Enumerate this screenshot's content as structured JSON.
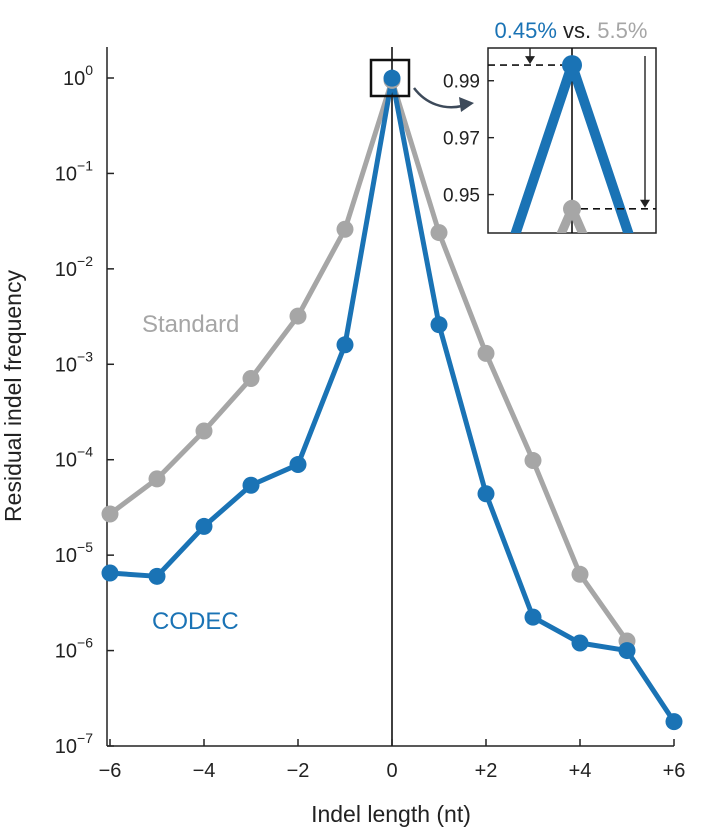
{
  "chart_data": {
    "type": "line",
    "xlabel": "Indel length (nt)",
    "ylabel": "Residual indel frequency",
    "xlim": [
      -6,
      6
    ],
    "ylim_log10": [
      -7,
      0
    ],
    "y_scale": "log",
    "x_tick_labels": [
      {
        "value": -6,
        "label": "−6"
      },
      {
        "value": -4,
        "label": "−4"
      },
      {
        "value": -2,
        "label": "−2"
      },
      {
        "value": 0,
        "label": "0"
      },
      {
        "value": 2,
        "label": "+2"
      },
      {
        "value": 4,
        "label": "+4"
      },
      {
        "value": 6,
        "label": "+6"
      }
    ],
    "y_tick_labels": [
      {
        "exp": 0,
        "base": "10",
        "sup": "0"
      },
      {
        "exp": -1,
        "base": "10",
        "sup": "−1"
      },
      {
        "exp": -2,
        "base": "10",
        "sup": "−2"
      },
      {
        "exp": -3,
        "base": "10",
        "sup": "−3"
      },
      {
        "exp": -4,
        "base": "10",
        "sup": "−4"
      },
      {
        "exp": -5,
        "base": "10",
        "sup": "−5"
      },
      {
        "exp": -6,
        "base": "10",
        "sup": "−6"
      },
      {
        "exp": -7,
        "base": "10",
        "sup": "−7"
      }
    ],
    "series": [
      {
        "name": "Standard",
        "color": "#a6a6a6",
        "x": [
          -6,
          -5,
          -4,
          -3,
          -2,
          -1,
          0,
          1,
          2,
          3,
          4,
          5
        ],
        "y": [
          2.7e-05,
          6.3e-05,
          0.0002,
          0.00071,
          0.0032,
          0.026,
          0.945,
          0.024,
          0.0013,
          9.8e-05,
          6.3e-06,
          1.26e-06
        ]
      },
      {
        "name": "CODEC",
        "color": "#1a73b5",
        "x": [
          -6,
          -5,
          -4,
          -3,
          -2,
          -1,
          0,
          1,
          2,
          3,
          4,
          5,
          6
        ],
        "y": [
          6.5e-06,
          6e-06,
          2e-05,
          5.4e-05,
          8.9e-05,
          0.0016,
          0.9955,
          0.0026,
          4.4e-05,
          2.24e-06,
          1.2e-06,
          1e-06,
          1.8e-07
        ]
      }
    ],
    "inset": {
      "title_codec": "0.45%",
      "title_vs": "vs.",
      "title_standard": "5.5%",
      "y_tick_labels": [
        "0.99",
        "0.97",
        "0.95"
      ],
      "y_ticks": [
        0.99,
        0.97,
        0.95
      ],
      "ylim": [
        0.9365,
        1.0015
      ],
      "codec_value": 0.9955,
      "standard_value": 0.945
    }
  }
}
